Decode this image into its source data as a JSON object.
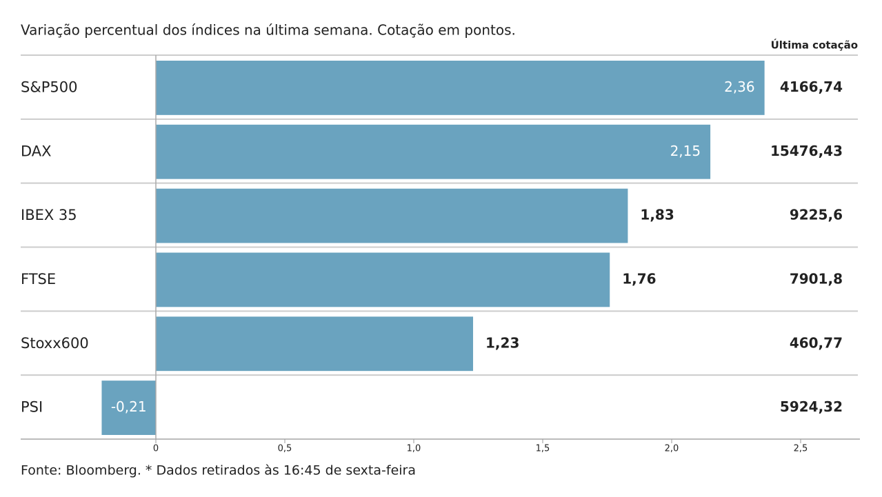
{
  "chart_data": {
    "type": "barh",
    "title": "Variação percentual dos índices na última semana. Cotação em pontos.",
    "categories": [
      "S&P500",
      "DAX",
      "IBEX 35",
      "FTSE",
      "Stoxx600",
      "PSI"
    ],
    "values": [
      2.36,
      2.15,
      1.83,
      1.76,
      1.23,
      -0.21
    ],
    "value_labels": [
      "2,36",
      "2,15",
      "1,83",
      "1,76",
      "1,23",
      "-0,21"
    ],
    "color": "#6aa3bf",
    "xlim": [
      -0.3,
      2.6
    ],
    "xticks": [
      0,
      {
        "value": 0.5,
        "label": "0,5"
      },
      {
        "value": 1.0,
        "label": "1,0"
      },
      {
        "value": 1.5,
        "label": "1,5"
      },
      {
        "value": 2.0,
        "label": "2,0"
      },
      {
        "value": 2.5,
        "label": "2,5"
      }
    ],
    "last_quote": {
      "title": "Última cotação",
      "labels": [
        "4166,74",
        "15476,43",
        "9225,6",
        "7901,8",
        "460,77",
        "5924,32"
      ]
    },
    "footer": "Fonte: Bloomberg.  * Dados retirados às 16:45 de sexta-feira"
  }
}
